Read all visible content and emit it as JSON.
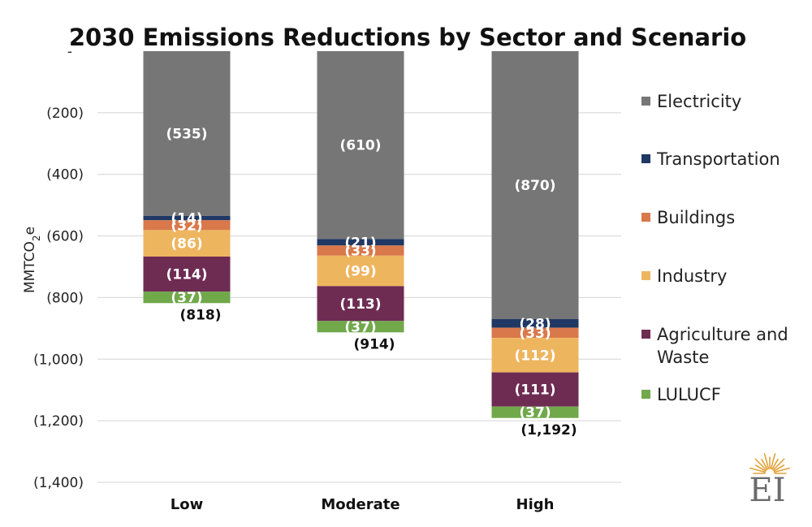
{
  "logo": {
    "text": "EI",
    "color": "#e3a23a"
  },
  "chart_data": {
    "type": "bar",
    "stacked": true,
    "title": "2030 Emissions Reductions by Sector and Scenario",
    "ylabel": "MMTCO2e",
    "ylabel_main": "MMTCO",
    "ylabel_sub": "2",
    "ylabel_tail": "e",
    "ylim": [
      -1400,
      0
    ],
    "yticks": [
      0,
      -200,
      -400,
      -600,
      -800,
      -1000,
      -1200,
      -1400
    ],
    "ytick_labels": [
      "-",
      "(200)",
      "(400)",
      "(600)",
      "(800)",
      "(1,000)",
      "(1,200)",
      "(1,400)"
    ],
    "grid": true,
    "legend_position": "right",
    "categories": [
      "Low",
      "Moderate",
      "High"
    ],
    "series": [
      {
        "name": "Electricity",
        "color": "#767676",
        "values": [
          -535,
          -610,
          -870
        ],
        "labels": [
          "(535)",
          "(610)",
          "(870)"
        ]
      },
      {
        "name": "Transportation",
        "color": "#1f3864",
        "values": [
          -14,
          -21,
          -28
        ],
        "labels": [
          "(14)",
          "(21)",
          "(28)"
        ]
      },
      {
        "name": "Buildings",
        "color": "#d9784b",
        "values": [
          -32,
          -33,
          -33
        ],
        "labels": [
          "(32)",
          "(33)",
          "(33)"
        ]
      },
      {
        "name": "Industry",
        "color": "#eeb55f",
        "values": [
          -86,
          -99,
          -112
        ],
        "labels": [
          "(86)",
          "(99)",
          "(112)"
        ]
      },
      {
        "name": "Agriculture and Waste",
        "color": "#6e2c53",
        "values": [
          -114,
          -113,
          -111
        ],
        "labels": [
          "(114)",
          "(113)",
          "(111)"
        ]
      },
      {
        "name": "LULUCF",
        "color": "#70a84a",
        "values": [
          -37,
          -37,
          -37
        ],
        "labels": [
          "(37)",
          "(37)",
          "(37)"
        ]
      }
    ],
    "totals": [
      -818,
      -914,
      -1192
    ],
    "total_labels": [
      "(818)",
      "(914)",
      "(1,192)"
    ]
  }
}
